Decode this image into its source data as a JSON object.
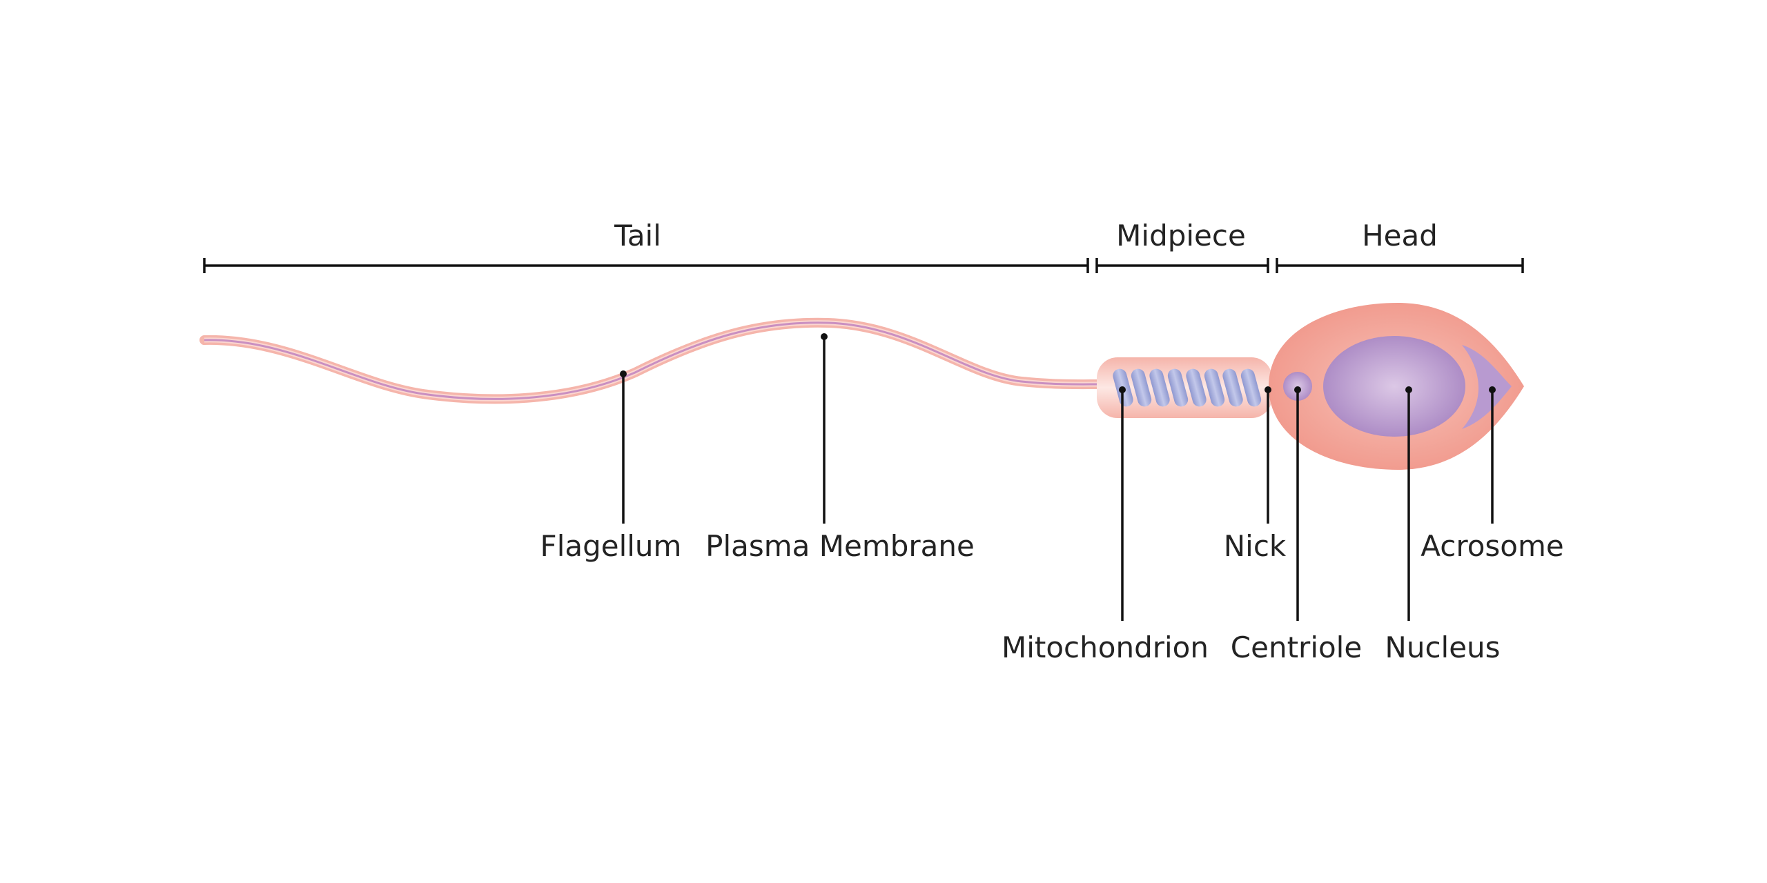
{
  "sections": {
    "tail": "Tail",
    "midpiece": "Midpiece",
    "head": "Head"
  },
  "labels": {
    "flagellum": "Flagellum",
    "plasma_membrane": "Plasma Membrane",
    "mitochondrion": "Mitochondrion",
    "nick": "Nick",
    "centriole": "Centriole",
    "nucleus": "Nucleus",
    "acrosome": "Acrosome"
  },
  "colors": {
    "body": "#f29a8e",
    "membrane": "#f7c4bc",
    "purple": "#b08ec6",
    "mitochondria": "#9fa8d8",
    "lines": "#111111"
  }
}
